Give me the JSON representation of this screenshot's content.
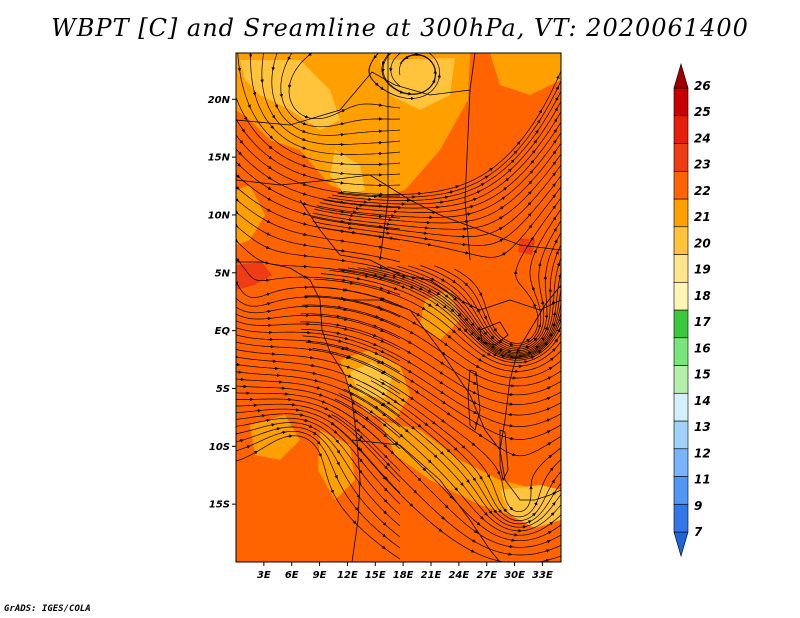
{
  "title": "WBPT [C] and Sreamline at 300hPa, VT: 2020061400",
  "credit": "GrADS: IGES/COLA",
  "map": {
    "lon_range": [
      0,
      35
    ],
    "lat_range": [
      -20,
      24
    ],
    "lat_ticks": [
      {
        "value": 20,
        "label": "20N"
      },
      {
        "value": 15,
        "label": "15N"
      },
      {
        "value": 10,
        "label": "10N"
      },
      {
        "value": 5,
        "label": "5N"
      },
      {
        "value": 0,
        "label": "EQ"
      },
      {
        "value": -5,
        "label": "5S"
      },
      {
        "value": -10,
        "label": "10S"
      },
      {
        "value": -15,
        "label": "15S"
      }
    ],
    "lon_ticks": [
      {
        "value": 3,
        "label": "3E"
      },
      {
        "value": 6,
        "label": "6E"
      },
      {
        "value": 9,
        "label": "9E"
      },
      {
        "value": 12,
        "label": "12E"
      },
      {
        "value": 15,
        "label": "15E"
      },
      {
        "value": 18,
        "label": "18E"
      },
      {
        "value": 21,
        "label": "21E"
      },
      {
        "value": 24,
        "label": "24E"
      },
      {
        "value": 27,
        "label": "27E"
      },
      {
        "value": 30,
        "label": "30E"
      },
      {
        "value": 33,
        "label": "33E"
      }
    ],
    "dominant_color": "#ff6400",
    "field_colors": {
      "c20": "#ffc33c",
      "c21": "#ffa000",
      "c22": "#ff6400",
      "c23": "#f03c14",
      "c24": "#e61e0a"
    }
  },
  "colorbar": {
    "labels": [
      "7",
      "9",
      "11",
      "12",
      "13",
      "14",
      "15",
      "16",
      "17",
      "18",
      "19",
      "20",
      "21",
      "22",
      "23",
      "24",
      "25",
      "26"
    ],
    "colors": [
      "#1e64dc",
      "#3278eb",
      "#5096f5",
      "#78b4fa",
      "#a0d2fa",
      "#d2f0fa",
      "#b4f0aa",
      "#78e678",
      "#3cc83c",
      "#fff5b4",
      "#ffe68c",
      "#ffc33c",
      "#ffa000",
      "#ff6400",
      "#f03c14",
      "#e61e0a",
      "#c80000",
      "#a00000"
    ]
  }
}
